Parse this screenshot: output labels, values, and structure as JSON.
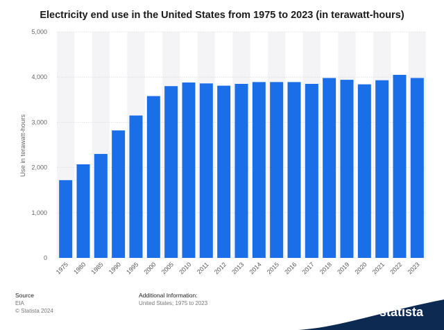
{
  "chart_data": {
    "type": "bar",
    "title": "Electricity end use in the United States from 1975 to 2023 (in terawatt-hours)",
    "xlabel": "",
    "ylabel": "Use in terawatt-hours",
    "ylim": [
      0,
      5000
    ],
    "yticks": [
      "0",
      "1,000",
      "2,000",
      "3,000",
      "4,000",
      "5,000"
    ],
    "ytick_values": [
      0,
      1000,
      2000,
      3000,
      4000,
      5000
    ],
    "grid": true,
    "categories": [
      "1975",
      "1980",
      "1985",
      "1990",
      "1995",
      "2000",
      "2005",
      "2010",
      "2011",
      "2012",
      "2013",
      "2014",
      "2015",
      "2016",
      "2017",
      "2018",
      "2019",
      "2020",
      "2021",
      "2022",
      "2023"
    ],
    "values": [
      1720,
      2070,
      2300,
      2820,
      3150,
      3580,
      3800,
      3880,
      3860,
      3810,
      3850,
      3890,
      3890,
      3890,
      3850,
      3980,
      3940,
      3840,
      3930,
      4050,
      3980
    ],
    "bar_color": "#1a6fe8",
    "band_color": "#f4f4f6"
  },
  "footer": {
    "source_head": "Source",
    "source_body": "EIA",
    "copyright": "© Statista 2024",
    "info_head": "Additional Information:",
    "info_body": "United States; 1975 to 2023"
  },
  "brand": {
    "name": "statista",
    "band_color": "#0c2a52"
  }
}
